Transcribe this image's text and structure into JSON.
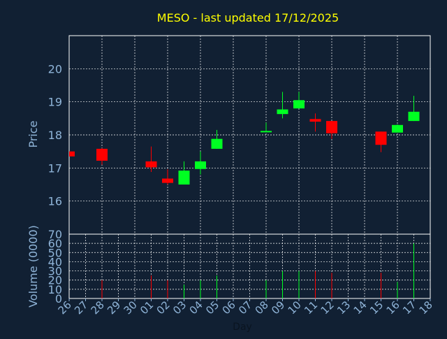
{
  "chart_data": {
    "type": "candlestick",
    "title": "MESO - last updated 17/12/2025",
    "price_ylabel": "Price",
    "volume_ylabel": "Volume (0000)",
    "xlabel": "Day",
    "x_tick_labels": [
      "26",
      "27",
      "28",
      "29",
      "30",
      "01",
      "02",
      "03",
      "04",
      "05",
      "06",
      "07",
      "08",
      "09",
      "10",
      "11",
      "12",
      "13",
      "14",
      "15",
      "16",
      "17",
      "18"
    ],
    "price_ylim": [
      15,
      21
    ],
    "price_ticks": [
      16,
      17,
      18,
      19,
      20
    ],
    "volume_ylim": [
      0,
      70
    ],
    "volume_ticks": [
      0,
      10,
      20,
      30,
      40,
      50,
      60,
      70
    ],
    "grid": true,
    "colors": {
      "background": "#112033",
      "up": "#00ff22",
      "down": "#ff0000",
      "title": "#ffff00",
      "axis_text": "#8fb4d8",
      "grid": "#ffffff"
    },
    "candles": [
      {
        "day": "26",
        "open": 17.5,
        "high": 17.5,
        "low": 17.35,
        "close": 17.35,
        "volume": 0
      },
      {
        "day": "28",
        "open": 17.58,
        "high": 17.6,
        "low": 17.1,
        "close": 17.22,
        "volume": 20
      },
      {
        "day": "01",
        "open": 17.2,
        "high": 17.65,
        "low": 16.88,
        "close": 17.02,
        "volume": 25
      },
      {
        "day": "02",
        "open": 16.68,
        "high": 16.96,
        "low": 16.5,
        "close": 16.55,
        "volume": 20
      },
      {
        "day": "03",
        "open": 16.5,
        "high": 17.2,
        "low": 16.5,
        "close": 16.92,
        "volume": 15
      },
      {
        "day": "04",
        "open": 16.97,
        "high": 17.5,
        "low": 16.8,
        "close": 17.2,
        "volume": 20
      },
      {
        "day": "05",
        "open": 17.58,
        "high": 18.15,
        "low": 17.58,
        "close": 17.88,
        "volume": 25
      },
      {
        "day": "08",
        "open": 18.08,
        "high": 18.37,
        "low": 18.08,
        "close": 18.12,
        "volume": 20
      },
      {
        "day": "09",
        "open": 18.63,
        "high": 19.3,
        "low": 18.5,
        "close": 18.77,
        "volume": 30
      },
      {
        "day": "10",
        "open": 18.8,
        "high": 19.3,
        "low": 18.8,
        "close": 19.05,
        "volume": 30
      },
      {
        "day": "11",
        "open": 18.48,
        "high": 18.65,
        "low": 18.1,
        "close": 18.4,
        "volume": 30
      },
      {
        "day": "12",
        "open": 18.42,
        "high": 18.42,
        "low": 17.88,
        "close": 18.05,
        "volume": 28
      },
      {
        "day": "15",
        "open": 18.1,
        "high": 18.1,
        "low": 17.48,
        "close": 17.7,
        "volume": 28
      },
      {
        "day": "16",
        "open": 18.07,
        "high": 18.32,
        "low": 18.07,
        "close": 18.3,
        "volume": 18
      },
      {
        "day": "17",
        "open": 18.42,
        "high": 19.18,
        "low": 18.42,
        "close": 18.7,
        "volume": 60
      }
    ]
  }
}
